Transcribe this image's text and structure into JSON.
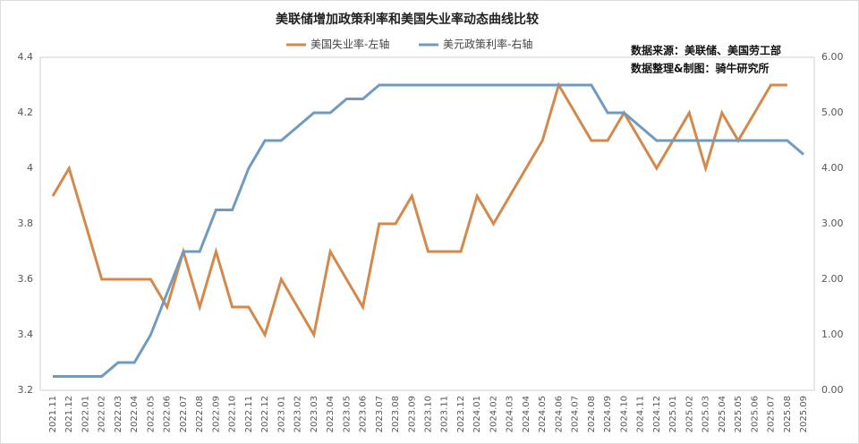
{
  "chart_data": {
    "type": "line",
    "title": "美联储增加政策利率和美国失业率动态曲线比较",
    "annotations": [
      "数据来源：美联储、美国劳工部",
      "数据整理&制图：骑牛研究所"
    ],
    "categories": [
      "2021.11",
      "2021.12",
      "2022.01",
      "2022.02",
      "2022.03",
      "2022.04",
      "2022.05",
      "2022.06",
      "2022.07",
      "2022.08",
      "2022.09",
      "2022.10",
      "2022.11",
      "2022.12",
      "2023.01",
      "2023.02",
      "2023.03",
      "2023.04",
      "2023.05",
      "2023.06",
      "2023.07",
      "2023.08",
      "2023.09",
      "2023.10",
      "2023.11",
      "2023.12",
      "2024.01",
      "2024.02",
      "2024.03",
      "2024.04",
      "2024.05",
      "2024.06",
      "2024.07",
      "2024.08",
      "2024.09",
      "2024.10",
      "2024.11",
      "2024.12",
      "2025.01",
      "2025.02",
      "2025.03",
      "2025.04",
      "2025.05",
      "2025.06",
      "2025.07",
      "2025.08",
      "2025.09"
    ],
    "series": [
      {
        "name": "美国失业率-左轴",
        "color": "#d4894a",
        "axis": "y",
        "values": [
          3.9,
          4.0,
          3.8,
          3.6,
          3.6,
          3.6,
          3.6,
          3.5,
          3.7,
          3.5,
          3.7,
          3.5,
          3.5,
          3.4,
          3.6,
          3.5,
          3.4,
          3.7,
          3.6,
          3.5,
          3.8,
          3.8,
          3.9,
          3.7,
          3.7,
          3.7,
          3.9,
          3.8,
          3.9,
          4.0,
          4.1,
          4.3,
          4.2,
          4.1,
          4.1,
          4.2,
          4.1,
          4.0,
          4.1,
          4.2,
          4.0,
          4.2,
          4.1,
          4.2,
          4.3,
          4.3,
          null
        ]
      },
      {
        "name": "美元政策利率-右轴",
        "color": "#6f9bc0",
        "axis": "y2",
        "values": [
          0.25,
          0.25,
          0.25,
          0.25,
          0.5,
          0.5,
          1.0,
          1.75,
          2.5,
          2.5,
          3.25,
          3.25,
          4.0,
          4.5,
          4.5,
          4.75,
          5.0,
          5.0,
          5.25,
          5.25,
          5.5,
          5.5,
          5.5,
          5.5,
          5.5,
          5.5,
          5.5,
          5.5,
          5.5,
          5.5,
          5.5,
          5.5,
          5.5,
          5.5,
          5.0,
          5.0,
          4.75,
          4.5,
          4.5,
          4.5,
          4.5,
          4.5,
          4.5,
          4.5,
          4.5,
          4.5,
          4.25
        ]
      }
    ],
    "ylim": [
      3.2,
      4.4
    ],
    "yticks": [
      3.2,
      3.4,
      3.6,
      3.8,
      4,
      4.2,
      4.4
    ],
    "y2lim": [
      0,
      6
    ],
    "y2ticks": [
      {
        "value": 0,
        "label": "0.00"
      },
      {
        "value": 1,
        "label": "1.00"
      },
      {
        "value": 2,
        "label": "2.00"
      },
      {
        "value": 3,
        "label": "3.00"
      },
      {
        "value": 4,
        "label": "4.00"
      },
      {
        "value": 5,
        "label": "5.00"
      },
      {
        "value": 6,
        "label": "6.00"
      }
    ],
    "grid": false
  }
}
